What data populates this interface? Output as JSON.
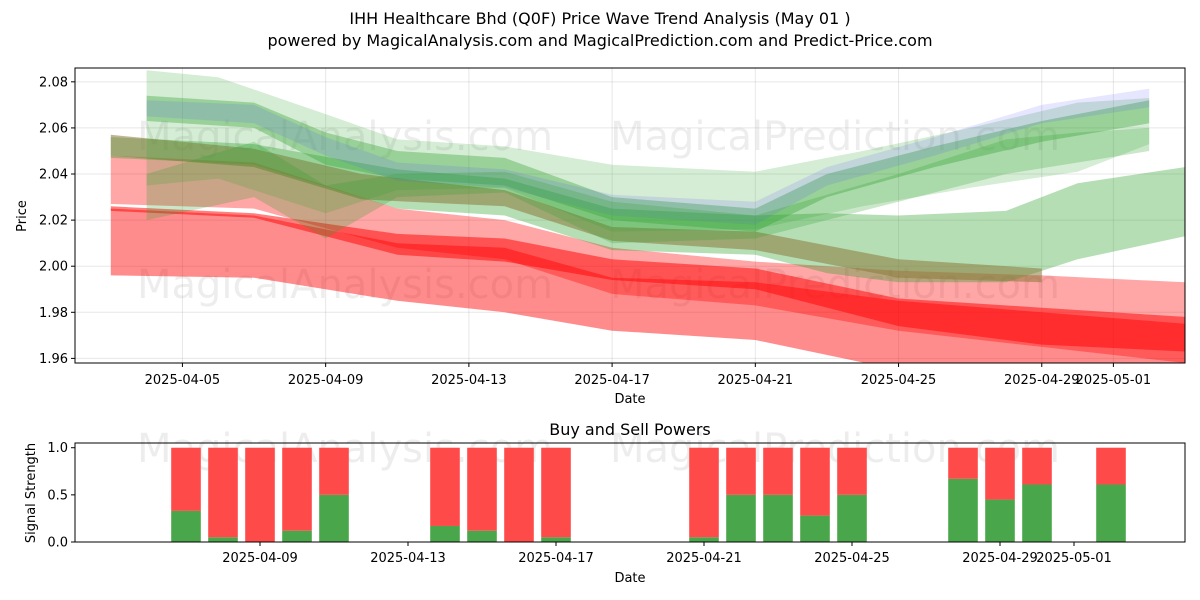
{
  "page": {
    "title": "IHH Healthcare Bhd (Q0F) Price Wave Trend Analysis (May 01 )",
    "subtitle": "powered by MagicalAnalysis.com and MagicalPrediction.com and Predict-Price.com",
    "watermarks": [
      "MagicalAnalysis.com",
      "MagicalPrediction.com"
    ]
  },
  "colors": {
    "red": "#ff0000",
    "green": "#2ca02c",
    "blue": "#5555ff",
    "brown": "#8b7a3a",
    "buy": "#4aa64a",
    "sell": "#ff4a4a"
  },
  "chart_data": [
    {
      "type": "area",
      "title": "",
      "xlabel": "Date",
      "ylabel": "Price",
      "xlim": [
        "2025-04-02",
        "2025-05-03"
      ],
      "ylim": [
        1.958,
        2.086
      ],
      "yticks": [
        "1.96",
        "1.98",
        "2.00",
        "2.02",
        "2.04",
        "2.06",
        "2.08"
      ],
      "xticks": [
        "2025-04-05",
        "2025-04-09",
        "2025-04-13",
        "2025-04-17",
        "2025-04-21",
        "2025-04-25",
        "2025-04-29",
        "2025-05-01"
      ],
      "grid": true,
      "series": [
        {
          "color": "red",
          "opacity": 0.45,
          "x": [
            "2025-04-03",
            "2025-04-07",
            "2025-04-11",
            "2025-04-14",
            "2025-04-17",
            "2025-04-21",
            "2025-04-25",
            "2025-04-29",
            "2025-05-03"
          ],
          "upper": [
            2.025,
            2.022,
            2.01,
            2.008,
            1.995,
            1.993,
            1.985,
            1.98,
            1.975
          ],
          "lower": [
            1.996,
            1.995,
            1.985,
            1.98,
            1.972,
            1.968,
            1.955,
            1.945,
            1.938
          ]
        },
        {
          "color": "red",
          "opacity": 0.35,
          "x": [
            "2025-04-03",
            "2025-04-07",
            "2025-04-11",
            "2025-04-14",
            "2025-04-17",
            "2025-04-21",
            "2025-04-25",
            "2025-04-29",
            "2025-05-03"
          ],
          "upper": [
            2.048,
            2.045,
            2.025,
            2.02,
            2.008,
            2.002,
            1.998,
            1.996,
            1.993
          ],
          "lower": [
            2.027,
            2.025,
            2.008,
            2.003,
            1.988,
            1.983,
            1.972,
            1.965,
            1.958
          ]
        },
        {
          "color": "red",
          "opacity": 0.5,
          "x": [
            "2025-04-03",
            "2025-04-07",
            "2025-04-11",
            "2025-04-14",
            "2025-04-17",
            "2025-04-21",
            "2025-04-25",
            "2025-04-29",
            "2025-05-03"
          ],
          "upper": [
            2.026,
            2.023,
            2.014,
            2.012,
            2.003,
            1.999,
            1.986,
            1.982,
            1.978
          ],
          "lower": [
            2.024,
            2.021,
            2.005,
            2.002,
            1.994,
            1.99,
            1.974,
            1.966,
            1.963
          ]
        },
        {
          "color": "green",
          "opacity": 0.35,
          "x": [
            "2025-04-03",
            "2025-04-07",
            "2025-04-11",
            "2025-04-14",
            "2025-04-17",
            "2025-04-21",
            "2025-04-23",
            "2025-04-25",
            "2025-04-28",
            "2025-04-30",
            "2025-05-03"
          ],
          "upper": [
            2.056,
            2.053,
            2.042,
            2.038,
            2.025,
            2.022,
            2.023,
            2.022,
            2.024,
            2.036,
            2.043
          ],
          "lower": [
            2.047,
            2.044,
            2.025,
            2.022,
            2.007,
            2.005,
            1.997,
            1.993,
            1.993,
            2.003,
            2.013
          ]
        },
        {
          "color": "brown",
          "opacity": 0.55,
          "x": [
            "2025-04-03",
            "2025-04-07",
            "2025-04-10",
            "2025-04-14",
            "2025-04-17",
            "2025-04-21",
            "2025-04-25",
            "2025-04-29"
          ],
          "upper": [
            2.057,
            2.051,
            2.04,
            2.033,
            2.017,
            2.015,
            2.003,
            1.999
          ],
          "lower": [
            2.048,
            2.043,
            2.029,
            2.026,
            2.011,
            2.007,
            1.995,
            1.993
          ]
        },
        {
          "color": "green",
          "opacity": 0.2,
          "x": [
            "2025-04-04",
            "2025-04-06",
            "2025-04-09",
            "2025-04-11",
            "2025-04-14",
            "2025-04-17",
            "2025-04-21",
            "2025-04-24",
            "2025-04-27",
            "2025-04-30",
            "2025-05-02"
          ],
          "upper": [
            2.085,
            2.082,
            2.066,
            2.055,
            2.052,
            2.044,
            2.041,
            2.05,
            2.06,
            2.071,
            2.073
          ],
          "lower": [
            2.035,
            2.038,
            2.023,
            2.033,
            2.034,
            2.015,
            2.016,
            2.026,
            2.034,
            2.041,
            2.053
          ]
        },
        {
          "color": "green",
          "opacity": 0.35,
          "x": [
            "2025-04-04",
            "2025-04-07",
            "2025-04-09",
            "2025-04-11",
            "2025-04-14",
            "2025-04-17",
            "2025-04-21",
            "2025-04-23",
            "2025-04-26",
            "2025-04-29",
            "2025-05-02"
          ],
          "upper": [
            2.074,
            2.071,
            2.058,
            2.05,
            2.047,
            2.03,
            2.025,
            2.04,
            2.052,
            2.063,
            2.072
          ],
          "lower": [
            2.063,
            2.06,
            2.044,
            2.038,
            2.035,
            2.02,
            2.015,
            2.03,
            2.043,
            2.054,
            2.062
          ]
        },
        {
          "color": "blue",
          "opacity": 0.15,
          "x": [
            "2025-04-04",
            "2025-04-07",
            "2025-04-09",
            "2025-04-11",
            "2025-04-14",
            "2025-04-17",
            "2025-04-21",
            "2025-04-23",
            "2025-04-26",
            "2025-04-29",
            "2025-05-02"
          ],
          "upper": [
            2.072,
            2.07,
            2.056,
            2.045,
            2.042,
            2.031,
            2.028,
            2.043,
            2.056,
            2.07,
            2.077
          ],
          "lower": [
            2.065,
            2.062,
            2.048,
            2.037,
            2.034,
            2.022,
            2.018,
            2.035,
            2.048,
            2.062,
            2.069
          ]
        },
        {
          "color": "green",
          "opacity": 0.25,
          "x": [
            "2025-04-04",
            "2025-04-07",
            "2025-04-09",
            "2025-04-11",
            "2025-04-14",
            "2025-04-17",
            "2025-04-21",
            "2025-04-25",
            "2025-04-28",
            "2025-04-30",
            "2025-05-02"
          ],
          "upper": [
            2.04,
            2.054,
            2.035,
            2.04,
            2.041,
            2.028,
            2.022,
            2.04,
            2.055,
            2.058,
            2.06
          ],
          "lower": [
            2.02,
            2.03,
            2.012,
            2.03,
            2.032,
            2.01,
            2.012,
            2.028,
            2.04,
            2.045,
            2.05
          ]
        }
      ]
    },
    {
      "type": "bar",
      "title": "Buy and Sell Powers",
      "xlabel": "Date",
      "ylabel": "Signal Strength",
      "xlim": [
        "2025-04-04",
        "2025-05-04"
      ],
      "ylim": [
        0,
        1.05
      ],
      "yticks": [
        "0.0",
        "0.5",
        "1.0"
      ],
      "xticks": [
        "2025-04-09",
        "2025-04-13",
        "2025-04-17",
        "2025-04-21",
        "2025-04-25",
        "2025-04-29",
        "2025-05-01"
      ],
      "categories": [
        "2025-04-07",
        "2025-04-08",
        "2025-04-09",
        "2025-04-10",
        "2025-04-11",
        "2025-04-14",
        "2025-04-15",
        "2025-04-16",
        "2025-04-17",
        "2025-04-21",
        "2025-04-22",
        "2025-04-23",
        "2025-04-24",
        "2025-04-25",
        "2025-04-28",
        "2025-04-29",
        "2025-04-30",
        "2025-05-02"
      ],
      "series": [
        {
          "name": "Buy",
          "color": "buy",
          "values": [
            0.33,
            0.05,
            0.0,
            0.12,
            0.5,
            0.17,
            0.12,
            0.0,
            0.05,
            0.05,
            0.5,
            0.5,
            0.28,
            0.5,
            0.67,
            0.45,
            0.61,
            0.61
          ]
        },
        {
          "name": "Sell",
          "color": "sell",
          "values": [
            0.67,
            0.95,
            1.0,
            0.88,
            0.5,
            0.83,
            0.88,
            1.0,
            0.95,
            0.95,
            0.5,
            0.5,
            0.72,
            0.5,
            0.33,
            0.55,
            0.39,
            0.39
          ]
        }
      ]
    }
  ]
}
